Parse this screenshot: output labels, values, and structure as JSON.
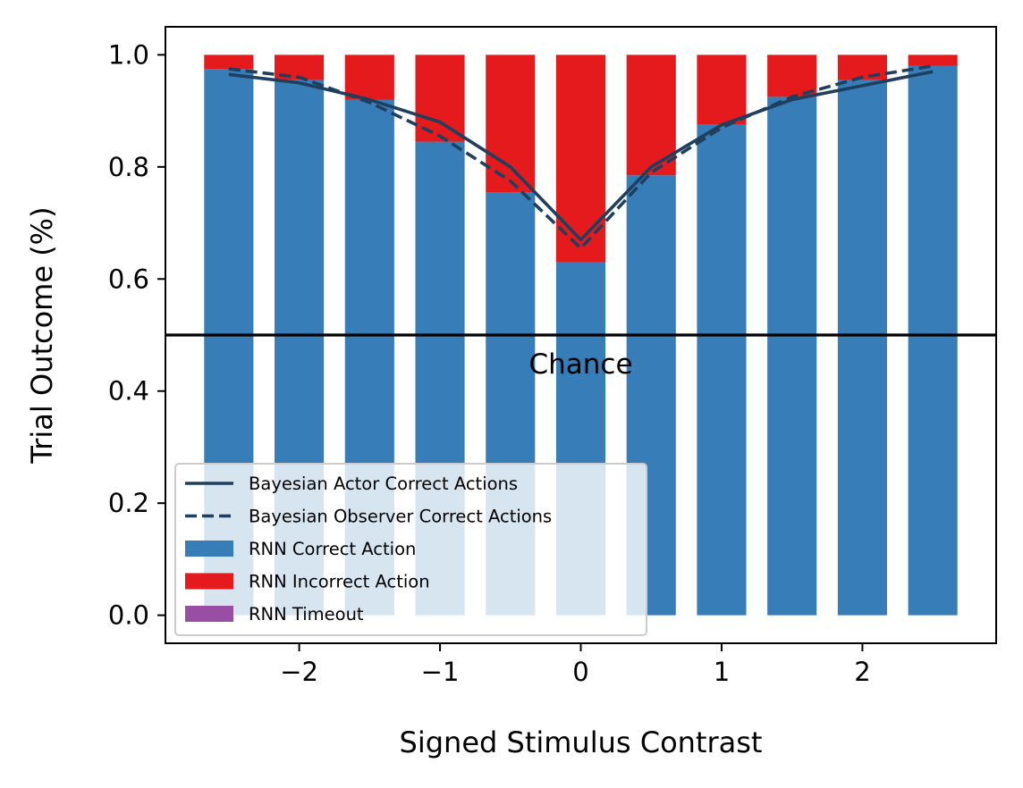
{
  "chart_data": {
    "type": "bar",
    "xlabel": "Signed Stimulus Contrast",
    "ylabel": "Trial Outcome (%)",
    "xlim": [
      -2.95,
      2.95
    ],
    "ylim": [
      -0.05,
      1.05
    ],
    "x_ticks": [
      -2,
      -1,
      0,
      1,
      2
    ],
    "x_tick_labels": [
      "−2",
      "−1",
      "0",
      "1",
      "2"
    ],
    "y_ticks": [
      0.0,
      0.2,
      0.4,
      0.6,
      0.8,
      1.0
    ],
    "y_tick_labels": [
      "0.0",
      "0.2",
      "0.4",
      "0.6",
      "0.8",
      "1.0"
    ],
    "x": [
      -2.5,
      -2.0,
      -1.5,
      -1.0,
      -0.5,
      0.0,
      0.5,
      1.0,
      1.5,
      2.0,
      2.5
    ],
    "bar_width": 0.35,
    "series": [
      {
        "name": "RNN Correct Action",
        "kind": "bar",
        "color": "#377eb8",
        "values": [
          0.975,
          0.955,
          0.92,
          0.845,
          0.755,
          0.63,
          0.785,
          0.875,
          0.925,
          0.955,
          0.98
        ]
      },
      {
        "name": "RNN Incorrect Action",
        "kind": "bar",
        "stacked_on": "RNN Correct Action",
        "color": "#e41a1c",
        "values": [
          0.025,
          0.045,
          0.08,
          0.155,
          0.245,
          0.37,
          0.215,
          0.125,
          0.075,
          0.045,
          0.02
        ]
      },
      {
        "name": "RNN Timeout",
        "kind": "bar",
        "color": "#984ea3",
        "values": [
          0,
          0,
          0,
          0,
          0,
          0,
          0,
          0,
          0,
          0,
          0
        ]
      },
      {
        "name": "Bayesian Actor Correct Actions",
        "kind": "line",
        "style": "solid",
        "color": "#1f3f5f",
        "values": [
          0.965,
          0.95,
          0.92,
          0.88,
          0.8,
          0.67,
          0.8,
          0.875,
          0.92,
          0.945,
          0.97
        ]
      },
      {
        "name": "Bayesian Observer Correct Actions",
        "kind": "line",
        "style": "dashed",
        "color": "#1f3f5f",
        "values": [
          0.975,
          0.96,
          0.915,
          0.855,
          0.775,
          0.655,
          0.79,
          0.87,
          0.925,
          0.96,
          0.98
        ]
      }
    ],
    "reference_line": {
      "y": 0.5,
      "label": "Chance",
      "color": "#000000"
    },
    "legend": {
      "placement": "lower-left",
      "order": [
        "Bayesian Actor Correct Actions",
        "Bayesian Observer Correct Actions",
        "RNN Correct Action",
        "RNN Incorrect Action",
        "RNN Timeout"
      ]
    },
    "grid": false
  }
}
